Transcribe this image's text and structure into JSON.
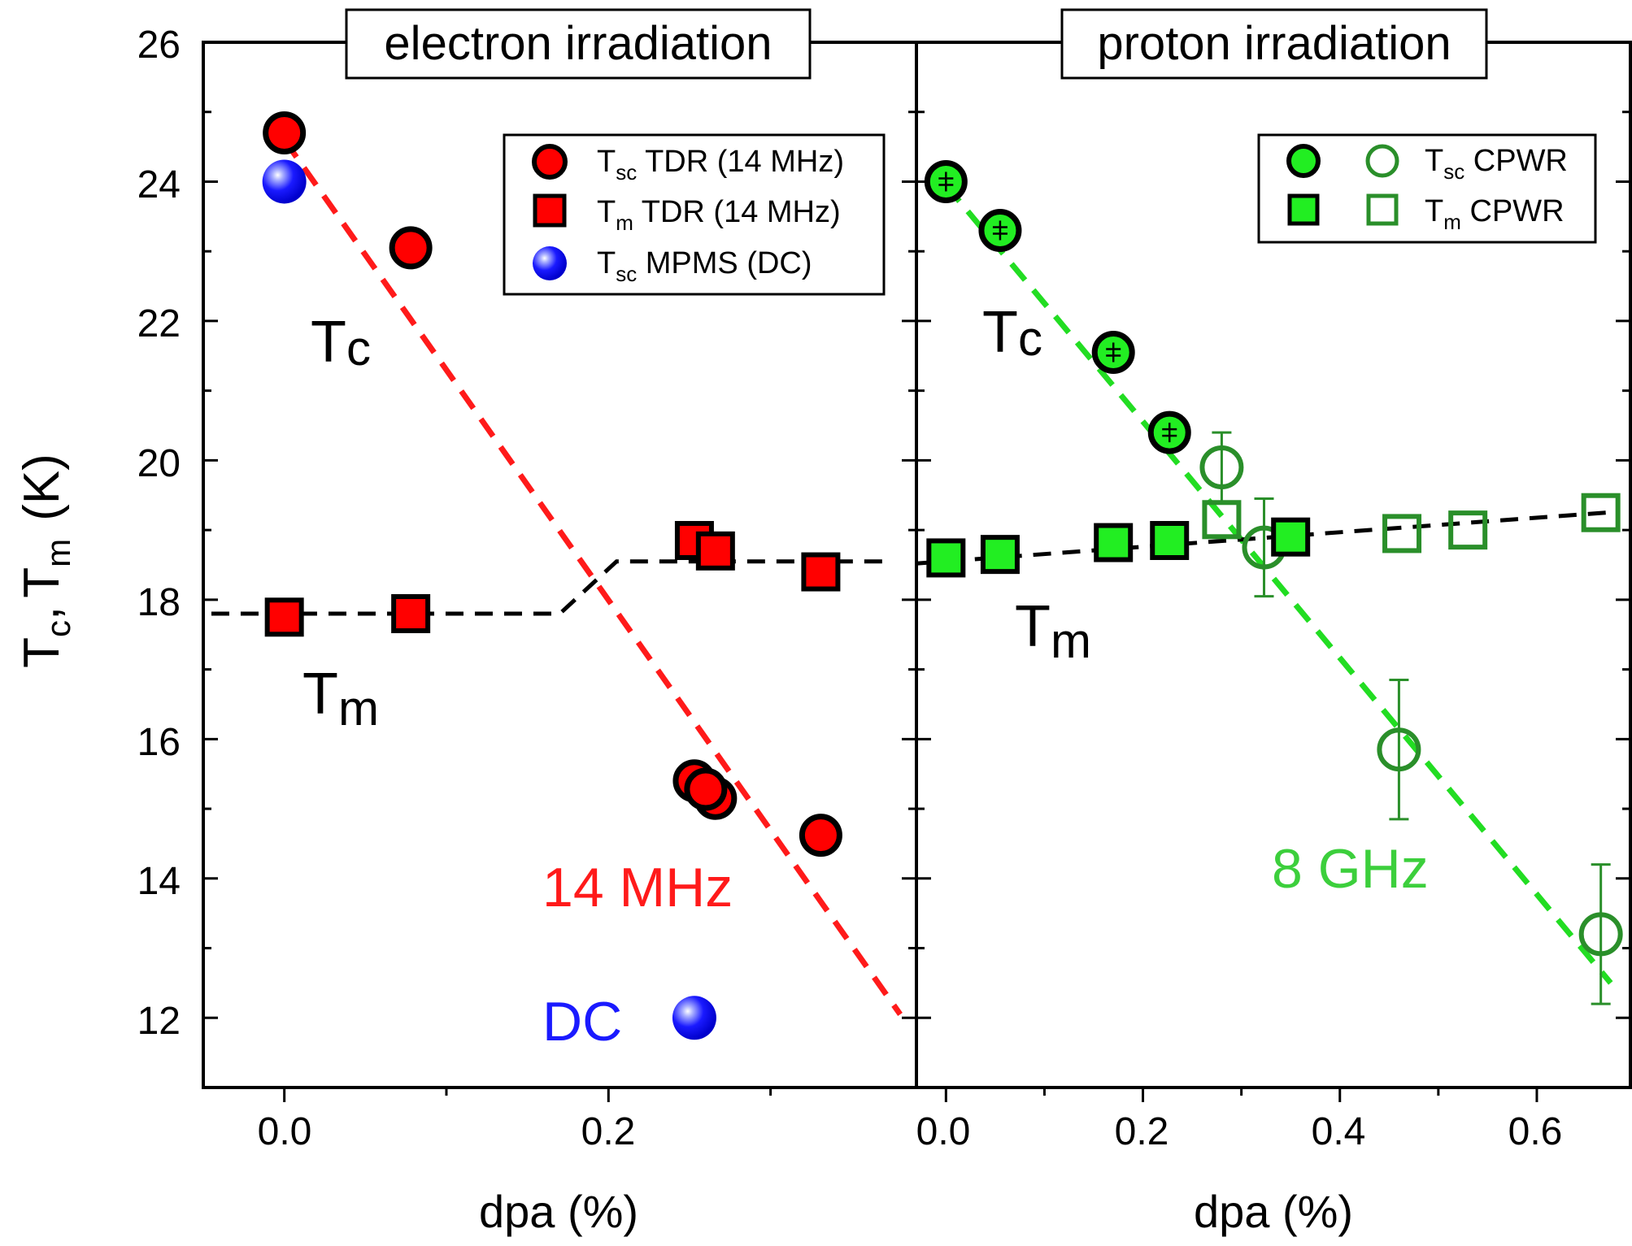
{
  "figure": {
    "y_axis_label": {
      "t1": "T",
      "s1": "c",
      "sep": ",",
      "t2": "T",
      "s2": "m",
      "unit": "(K)"
    },
    "colors": {
      "red": "#ff0000",
      "red_line": "#ff1a1a",
      "blue": "#1a1aff",
      "blue_text": "#1a1aff",
      "green": "#22ee22",
      "green_line": "#22dd22",
      "green_dark": "#2a8f2a",
      "green_text": "#3ccf3c",
      "black": "#000000"
    }
  },
  "chart_data": [
    {
      "type": "scatter",
      "panel": "left",
      "title": "electron irradiation",
      "xlabel": "dpa (%)",
      "ylabel": "Tc, Tm (K)",
      "xlim": [
        -0.05,
        0.39
      ],
      "ylim": [
        11,
        26
      ],
      "x_tick_labels": [
        "0.0",
        "0.2"
      ],
      "y_tick_labels": [
        "12",
        "14",
        "16",
        "18",
        "20",
        "22",
        "24",
        "26"
      ],
      "series": [
        {
          "name": "Tsc TDR (14 MHz)",
          "legend": {
            "main": "T",
            "sub": "sc",
            "rest": " TDR (14 MHz)"
          },
          "marker": "circle",
          "color": "#ff0000",
          "x": [
            0.0,
            0.078,
            0.253,
            0.266,
            0.331,
            0.26
          ],
          "y": [
            24.7,
            23.05,
            15.4,
            15.15,
            14.62,
            15.28
          ]
        },
        {
          "name": "Tm TDR (14 MHz)",
          "legend": {
            "main": "T",
            "sub": "m",
            "rest": " TDR (14 MHz)"
          },
          "marker": "square",
          "color": "#ff0000",
          "x": [
            0.0,
            0.078,
            0.253,
            0.266,
            0.331
          ],
          "y": [
            17.75,
            17.8,
            18.85,
            18.7,
            18.4
          ]
        },
        {
          "name": "Tsc MPMS (DC)",
          "legend": {
            "main": "T",
            "sub": "sc",
            "rest": " MPMS (DC)"
          },
          "marker": "sphere",
          "color": "#1a1aff",
          "x": [
            0.0,
            0.253
          ],
          "y": [
            24.0,
            12.0
          ]
        }
      ],
      "lines": [
        {
          "name": "Tc linear fit (14 MHz)",
          "color": "#ff1a1a",
          "x": [
            0.0,
            0.38
          ],
          "y": [
            24.6,
            12.05
          ]
        },
        {
          "name": "Tm guide",
          "color": "#000000",
          "x": [
            -0.045,
            0.17,
            0.205,
            0.375
          ],
          "y": [
            17.8,
            17.8,
            18.55,
            18.55
          ]
        }
      ],
      "annotations": {
        "tc": {
          "main": "T",
          "sub": "c"
        },
        "tm": {
          "main": "T",
          "sub": "m"
        },
        "freq": "14 MHz",
        "dc": "DC"
      }
    },
    {
      "type": "scatter",
      "panel": "right",
      "title": "proton irradiation",
      "xlabel": "dpa (%)",
      "ylabel": "Tc, Tm (K)",
      "xlim": [
        -0.03,
        0.695
      ],
      "ylim": [
        11,
        26
      ],
      "x_tick_labels": [
        "0.0",
        "0.2",
        "0.4",
        "0.6"
      ],
      "series": [
        {
          "name": "Tsc CPWR (filled)",
          "marker": "circle",
          "color": "#22ee22",
          "x": [
            0.0,
            0.055,
            0.17,
            0.227
          ],
          "y": [
            24.0,
            23.3,
            21.55,
            20.4
          ],
          "yerr": [
            0.12,
            0.12,
            0.12,
            0.12
          ]
        },
        {
          "name": "Tsc CPWR (open)",
          "marker": "circle-open",
          "color": "#2a8f2a",
          "x": [
            0.28,
            0.323,
            0.46,
            0.665
          ],
          "y": [
            19.9,
            18.75,
            15.85,
            13.2
          ],
          "yerr": [
            0.5,
            0.7,
            1.0,
            1.0
          ]
        },
        {
          "name": "Tm CPWR (filled)",
          "marker": "square",
          "color": "#22ee22",
          "x": [
            0.0,
            0.055,
            0.17,
            0.227,
            0.35
          ],
          "y": [
            18.6,
            18.65,
            18.82,
            18.85,
            18.9
          ]
        },
        {
          "name": "Tm CPWR (open)",
          "marker": "square-open",
          "color": "#2a8f2a",
          "x": [
            0.28,
            0.463,
            0.53,
            0.665
          ],
          "y": [
            19.15,
            18.95,
            19.0,
            19.25
          ]
        }
      ],
      "legend": [
        {
          "main": "T",
          "sub": "sc",
          "rest": " CPWR"
        },
        {
          "main": "T",
          "sub": "m",
          "rest": " CPWR"
        }
      ],
      "lines": [
        {
          "name": "Tc linear fit (8 GHz)",
          "color": "#22dd22",
          "x": [
            0.0,
            0.675
          ],
          "y": [
            23.95,
            12.5
          ]
        },
        {
          "name": "Tm guide",
          "color": "#000000",
          "x": [
            -0.03,
            0.67
          ],
          "y": [
            18.52,
            19.25
          ]
        }
      ],
      "annotations": {
        "tc": {
          "main": "T",
          "sub": "c"
        },
        "tm": {
          "main": "T",
          "sub": "m"
        },
        "freq": "8 GHz"
      }
    }
  ]
}
